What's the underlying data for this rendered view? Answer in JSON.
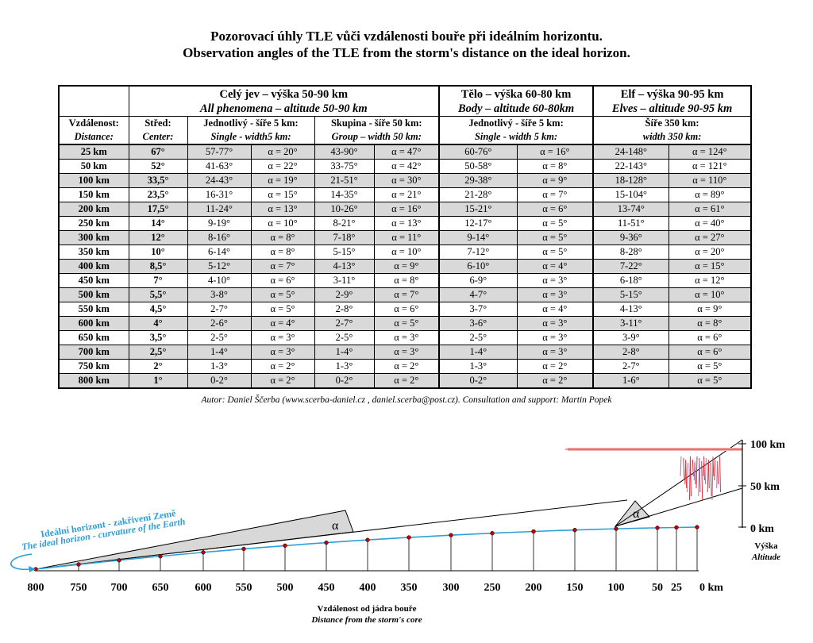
{
  "title": {
    "cz": "Pozorovací úhly TLE vůči vzdálenosti bouře při ideálním horizontu.",
    "en": "Observation angles of the TLE from the storm's distance on the ideal horizon."
  },
  "table": {
    "groups": [
      {
        "line1": "Celý jev – výška 50-90 km",
        "line2": "All phenomena – altitude 50-90 km"
      },
      {
        "line1": "Tělo – výška 60-80 km",
        "line2": "Body – altitude 60-80km"
      },
      {
        "line1": "Elf – výška 90-95 km",
        "line2": "Elves – altitude 90-95 km"
      }
    ],
    "sub_cz": {
      "distance": "Vzdálenost:",
      "center": "Střed:",
      "single": "Jednotlivý - šíře 5 km:",
      "group": "Skupina - šíře 50 km:",
      "body_single": "Jednotlivý - šíře 5 km:",
      "elf": "Šíře 350 km:"
    },
    "sub_en": {
      "distance": "Distance:",
      "center": "Center:",
      "single": "Single - width5 km:",
      "group": "Group – width 50 km:",
      "body_single": "Single - width 5 km:",
      "elf": "width 350 km:"
    },
    "rows": [
      [
        "25 km",
        "67°",
        "57-77°",
        "α = 20°",
        "43-90°",
        "α = 47°",
        "60-76°",
        "α = 16°",
        "24-148°",
        "α = 124°"
      ],
      [
        "50 km",
        "52°",
        "41-63°",
        "α = 22°",
        "33-75°",
        "α = 42°",
        "50-58°",
        "α = 8°",
        "22-143°",
        "α = 121°"
      ],
      [
        "100 km",
        "33,5°",
        "24-43°",
        "α = 19°",
        "21-51°",
        "α = 30°",
        "29-38°",
        "α = 9°",
        "18-128°",
        "α = 110°"
      ],
      [
        "150 km",
        "23,5°",
        "16-31°",
        "α = 15°",
        "14-35°",
        "α = 21°",
        "21-28°",
        "α = 7°",
        "15-104°",
        "α = 89°"
      ],
      [
        "200 km",
        "17,5°",
        "11-24°",
        "α = 13°",
        "10-26°",
        "α = 16°",
        "15-21°",
        "α = 6°",
        "13-74°",
        "α = 61°"
      ],
      [
        "250 km",
        "14°",
        "9-19°",
        "α = 10°",
        "8-21°",
        "α = 13°",
        "12-17°",
        "α = 5°",
        "11-51°",
        "α = 40°"
      ],
      [
        "300 km",
        "12°",
        "8-16°",
        "α = 8°",
        "7-18°",
        "α = 11°",
        "9-14°",
        "α = 5°",
        "9-36°",
        "α = 27°"
      ],
      [
        "350 km",
        "10°",
        "6-14°",
        "α = 8°",
        "5-15°",
        "α = 10°",
        "7-12°",
        "α = 5°",
        "8-28°",
        "α = 20°"
      ],
      [
        "400 km",
        "8,5°",
        "5-12°",
        "α = 7°",
        "4-13°",
        "α = 9°",
        "6-10°",
        "α = 4°",
        "7-22°",
        "α = 15°"
      ],
      [
        "450 km",
        "7°",
        "4-10°",
        "α = 6°",
        "3-11°",
        "α = 8°",
        "6-9°",
        "α = 3°",
        "6-18°",
        "α = 12°"
      ],
      [
        "500 km",
        "5,5°",
        "3-8°",
        "α = 5°",
        "2-9°",
        "α = 7°",
        "4-7°",
        "α = 3°",
        "5-15°",
        "α = 10°"
      ],
      [
        "550 km",
        "4,5°",
        "2-7°",
        "α = 5°",
        "2-8°",
        "α = 6°",
        "3-7°",
        "α = 4°",
        "4-13°",
        "α = 9°"
      ],
      [
        "600 km",
        "4°",
        "2-6°",
        "α = 4°",
        "2-7°",
        "α = 5°",
        "3-6°",
        "α = 3°",
        "3-11°",
        "α = 8°"
      ],
      [
        "650 km",
        "3,5°",
        "2-5°",
        "α = 3°",
        "2-5°",
        "α = 3°",
        "2-5°",
        "α = 3°",
        "3-9°",
        "α = 6°"
      ],
      [
        "700 km",
        "2,5°",
        "1-4°",
        "α = 3°",
        "1-4°",
        "α = 3°",
        "1-4°",
        "α = 3°",
        "2-8°",
        "α = 6°"
      ],
      [
        "750 km",
        "2°",
        "1-3°",
        "α = 2°",
        "1-3°",
        "α = 2°",
        "1-3°",
        "α = 2°",
        "2-7°",
        "α = 5°"
      ],
      [
        "800 km",
        "1°",
        "0-2°",
        "α = 2°",
        "0-2°",
        "α = 2°",
        "0-2°",
        "α = 2°",
        "1-6°",
        "α = 5°"
      ]
    ]
  },
  "author": "Autor: Daniel Ščerba (www.scerba-daniel.cz , daniel.scerba@post.cz). Consultation and support: Martin Popek",
  "diagram": {
    "horizon_cz": "Ideální horizont - zakřivení Země",
    "horizon_en": "The ideal horizon - curvature of the Earth",
    "alpha": "α",
    "distance_ticks": [
      "800",
      "750",
      "700",
      "650",
      "600",
      "550",
      "500",
      "450",
      "400",
      "350",
      "300",
      "250",
      "200",
      "150",
      "100",
      "50",
      "25",
      "0 km"
    ],
    "altitude_ticks": [
      "100 km",
      "50 km",
      "0 km"
    ],
    "altitude_cz": "Výška",
    "altitude_en": "Altitude",
    "distance_cz": "Vzdálenost od jádra bouře",
    "distance_en": "Distance from the storm's core",
    "colors": {
      "horizon": "#2e9fd8",
      "dot": "#c00000",
      "sprite": "#e0303a",
      "sprite_alt": "#b070c0",
      "wedge": "#d8d8d8"
    }
  }
}
